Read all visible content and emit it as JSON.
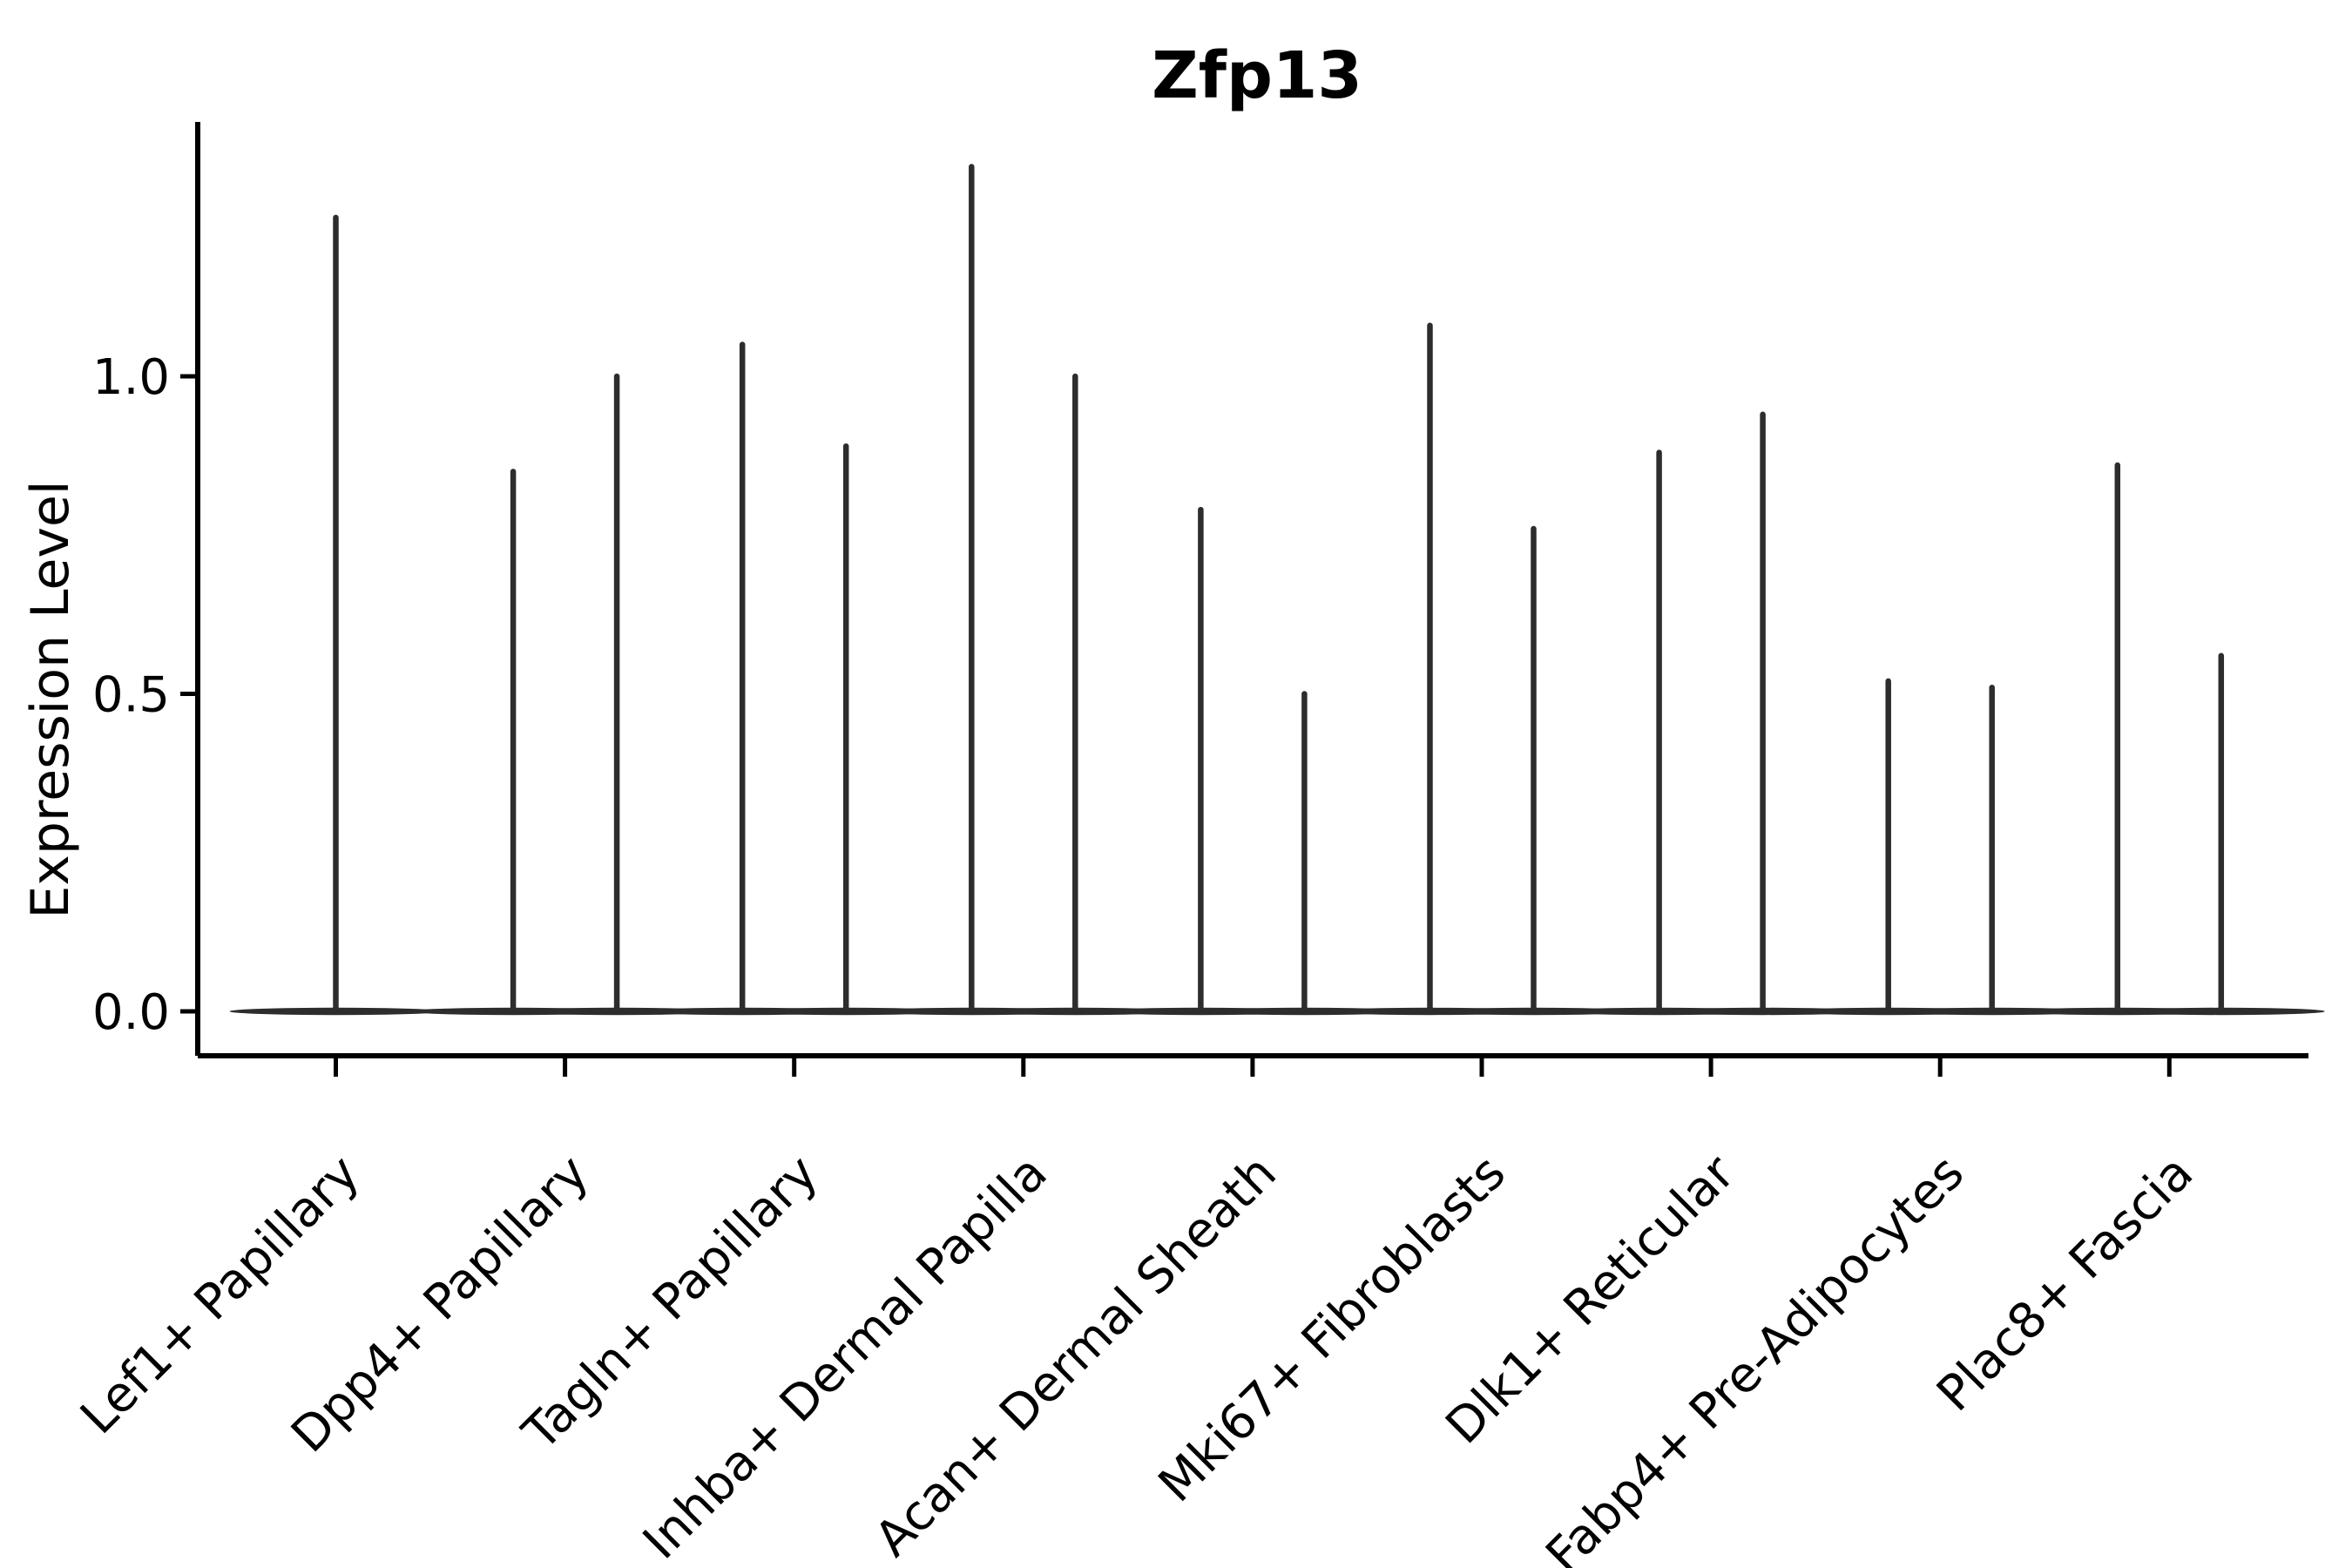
{
  "title": "Zfp13",
  "chart_data": {
    "type": "violin",
    "title": "Zfp13",
    "xlabel": "",
    "ylabel": "Expression Level",
    "ytick_labels": [
      "0.0",
      "0.5",
      "1.0"
    ],
    "ytick_values": [
      0.0,
      0.5,
      1.0
    ],
    "ylim": [
      -0.07,
      1.4
    ],
    "grid": false,
    "legend": "none",
    "violin_color": "#2d2d2d",
    "axis_color": "#000000",
    "shape_note": "zero-inflated expression: each violin renders as a wide flat base at 0 plus a thin spike up to its maximum expression value",
    "categories": [
      {
        "label": "Lef1+ Papillary",
        "violin_maxima": [
          1.25
        ]
      },
      {
        "label": "Dpp4+ Papillary",
        "violin_maxima": [
          0.85,
          1.0
        ]
      },
      {
        "label": "Tagln+ Papillary",
        "violin_maxima": [
          1.05,
          0.89
        ]
      },
      {
        "label": "Inhba+ Dermal Papilla",
        "violin_maxima": [
          1.33,
          1.0
        ]
      },
      {
        "label": "Acan+ Dermal Sheath",
        "violin_maxima": [
          0.79,
          0.5
        ]
      },
      {
        "label": "Mki67+ Fibroblasts",
        "violin_maxima": [
          1.08,
          0.76
        ]
      },
      {
        "label": "Dlk1+ Reticular",
        "violin_maxima": [
          0.88,
          0.94
        ]
      },
      {
        "label": "Fabp4+ Pre-Adipocytes",
        "violin_maxima": [
          0.52,
          0.51
        ]
      },
      {
        "label": "Plac8+ Fascia",
        "violin_maxima": [
          0.86,
          0.56
        ]
      }
    ]
  }
}
